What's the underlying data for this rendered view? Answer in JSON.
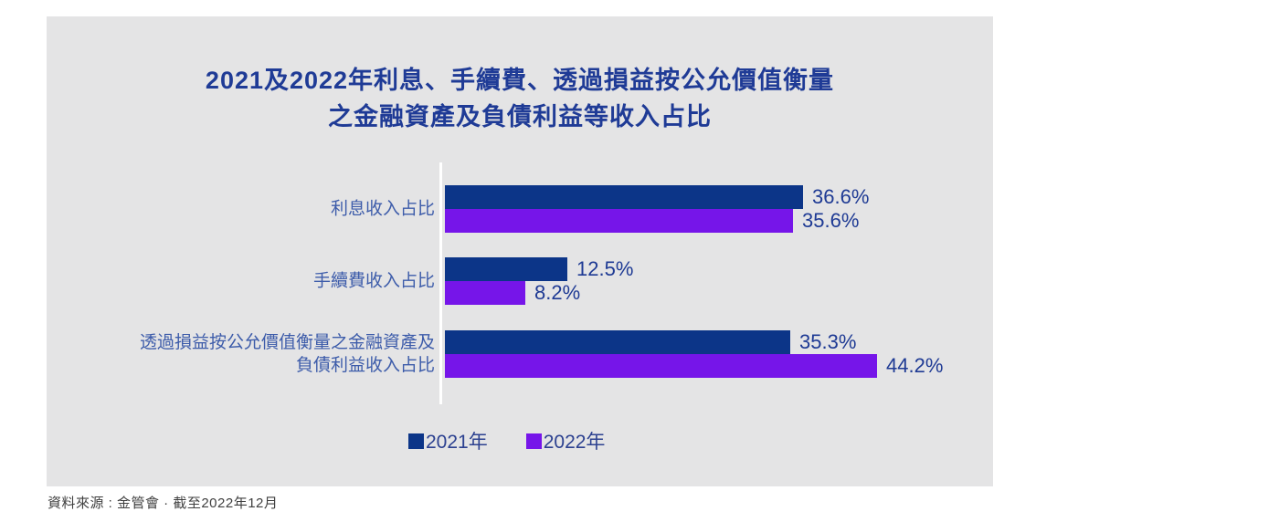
{
  "title": {
    "line1": "2021及2022年利息、手續費、透過損益按公允價值衡量",
    "line2": "之金融資產及負債利益等收入占比"
  },
  "chart_data": {
    "type": "bar",
    "orientation": "horizontal",
    "categories": [
      "利息收入占比",
      "手續費收入占比",
      "透過損益按公允價值衡量之金融資產及\n負債利益收入占比"
    ],
    "series": [
      {
        "name": "2021年",
        "color": "#0c3588",
        "values": [
          36.6,
          12.5,
          35.3
        ]
      },
      {
        "name": "2022年",
        "color": "#7615e9",
        "values": [
          35.6,
          8.2,
          44.2
        ]
      }
    ],
    "value_suffix": "%",
    "xlim": [
      0,
      50
    ],
    "grid": false,
    "legend_position": "bottom",
    "axis_line_color": "#ffffff"
  },
  "legend": {
    "items": [
      {
        "label": "2021年",
        "color": "#0c3588"
      },
      {
        "label": "2022年",
        "color": "#7615e9"
      }
    ]
  },
  "source": "資料來源 : 金管會 · 截至2022年12月",
  "colors": {
    "panel_background": "#e4e4e5",
    "title_text": "#1f3b96",
    "category_text": "#3d5caa",
    "value_text": "#1e3a94",
    "series_2021": "#0c3588",
    "series_2022": "#7615e9"
  }
}
